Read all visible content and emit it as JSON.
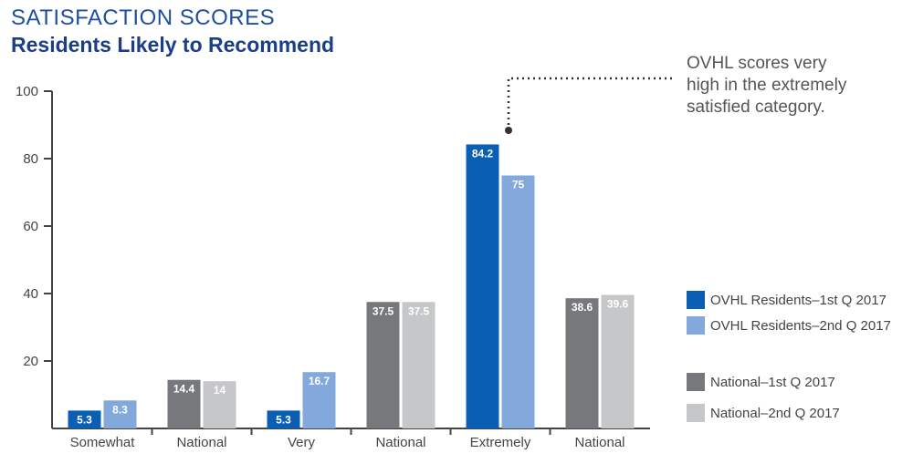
{
  "chart_data": {
    "type": "bar",
    "title": "SATISFACTION SCORES",
    "subtitle": "Residents Likely to Recommend",
    "ylim": [
      0,
      100
    ],
    "yticks": [
      20,
      40,
      60,
      80,
      100
    ],
    "grid": false,
    "legend_position": "right",
    "colors": {
      "OVHL Residents–1st Q 2017": "#0a5fb4",
      "OVHL Residents–2nd Q 2017": "#82a8dc",
      "National–1st Q 2017": "#77787b",
      "National–2nd Q 2017": "#c6c7c8"
    },
    "groups": [
      {
        "category": "Somewhat",
        "bars": [
          {
            "series": "OVHL Residents–1st Q 2017",
            "value": 5.3,
            "label": "5.3"
          },
          {
            "series": "OVHL Residents–2nd Q 2017",
            "value": 8.3,
            "label": "8.3"
          }
        ]
      },
      {
        "category": "National",
        "bars": [
          {
            "series": "National–1st Q 2017",
            "value": 14.4,
            "label": "14.4"
          },
          {
            "series": "National–2nd Q 2017",
            "value": 14,
            "label": "14"
          }
        ]
      },
      {
        "category": "Very",
        "bars": [
          {
            "series": "OVHL Residents–1st Q 2017",
            "value": 5.3,
            "label": "5.3"
          },
          {
            "series": "OVHL Residents–2nd Q 2017",
            "value": 16.7,
            "label": "16.7"
          }
        ]
      },
      {
        "category": "National",
        "bars": [
          {
            "series": "National–1st Q 2017",
            "value": 37.5,
            "label": "37.5"
          },
          {
            "series": "National–2nd Q 2017",
            "value": 37.5,
            "label": "37.5"
          }
        ]
      },
      {
        "category": "Extremely",
        "bars": [
          {
            "series": "OVHL Residents–1st Q 2017",
            "value": 84.2,
            "label": "84.2"
          },
          {
            "series": "OVHL Residents–2nd Q 2017",
            "value": 75,
            "label": "75"
          }
        ]
      },
      {
        "category": "National",
        "bars": [
          {
            "series": "National–1st Q 2017",
            "value": 38.6,
            "label": "38.6"
          },
          {
            "series": "National–2nd Q 2017",
            "value": 39.6,
            "label": "39.6"
          }
        ]
      }
    ],
    "annotation": "OVHL scores very\nhigh in the extremely\nsatisfied category.",
    "legend": [
      {
        "label": "OVHL Residents–1st Q 2017",
        "color": "#0a5fb4"
      },
      {
        "label": "OVHL Residents–2nd Q 2017",
        "color": "#82a8dc"
      },
      {
        "label": "National–1st Q 2017",
        "color": "#77787b"
      },
      {
        "label": "National–2nd Q 2017",
        "color": "#c6c7c8"
      }
    ]
  }
}
